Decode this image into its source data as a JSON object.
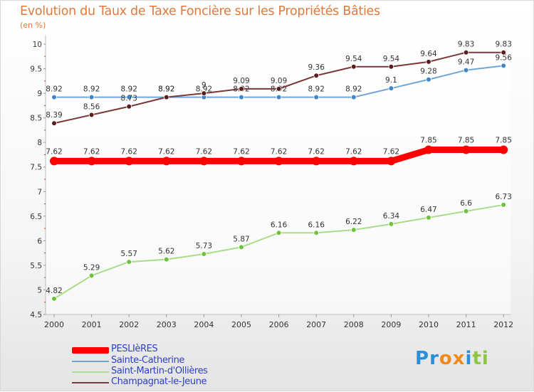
{
  "header": {
    "title": "Evolution du Taux de Taxe Foncière sur les Propriétés Bâties",
    "unit": "(en %)"
  },
  "chart_data": {
    "type": "line",
    "title": "Evolution du Taux de Taxe Foncière sur les Propriétés Bâties",
    "ylabel": "(en %)",
    "xlabel": "",
    "categories": [
      "2000",
      "2001",
      "2002",
      "2003",
      "2004",
      "2005",
      "2006",
      "2007",
      "2008",
      "2009",
      "2010",
      "2011",
      "2012"
    ],
    "ylim": [
      4.5,
      10
    ],
    "yticks": [
      "4.5",
      "5",
      "5.5",
      "6",
      "6.5",
      "7",
      "7.5",
      "8",
      "8.5",
      "9",
      "9.5",
      "10"
    ],
    "grid": false,
    "legend_position": "bottom-left",
    "series": [
      {
        "name": "PESLIèRES",
        "color": "#ff0000",
        "values": [
          7.62,
          7.62,
          7.62,
          7.62,
          7.62,
          7.62,
          7.62,
          7.62,
          7.62,
          7.62,
          7.85,
          7.85,
          7.85
        ],
        "labels": [
          "7.62",
          "7.62",
          "7.62",
          "7.62",
          "7.62",
          "7.62",
          "7.62",
          "7.62",
          "7.62",
          "7.62",
          "7.85",
          "7.85",
          "7.85"
        ]
      },
      {
        "name": "Sainte-Catherine",
        "color": "#6fa6d6",
        "marker_color": "#3f86c6",
        "values": [
          8.92,
          8.92,
          8.92,
          8.92,
          8.92,
          8.92,
          8.92,
          8.92,
          8.92,
          9.1,
          9.28,
          9.47,
          9.56
        ],
        "labels": [
          "8.92",
          "8.92",
          "8.92",
          "8.92",
          "8.92",
          "8.92",
          "8.92",
          "8.92",
          "8.92",
          "9.1",
          "9.28",
          "9.47",
          "9.56"
        ]
      },
      {
        "name": "Saint-Martin-d'Ollières",
        "color": "#a9dd8a",
        "marker_color": "#6cc23a",
        "values": [
          4.82,
          5.29,
          5.57,
          5.62,
          5.73,
          5.87,
          6.16,
          6.16,
          6.22,
          6.34,
          6.47,
          6.6,
          6.73
        ],
        "labels": [
          "4.82",
          "5.29",
          "5.57",
          "5.62",
          "5.73",
          "5.87",
          "6.16",
          "6.16",
          "6.22",
          "6.34",
          "6.47",
          "6.6",
          "6.73"
        ]
      },
      {
        "name": "Champagnat-le-Jeune",
        "color": "#7a3838",
        "marker_color": "#5a1c1c",
        "values": [
          8.39,
          8.56,
          8.73,
          8.92,
          9,
          9.09,
          9.09,
          9.36,
          9.54,
          9.54,
          9.64,
          9.83,
          9.83
        ],
        "labels": [
          "8.39",
          "8.56",
          "8.73",
          "8.92",
          "9",
          "9.09",
          "9.09",
          "9.36",
          "9.54",
          "9.54",
          "9.64",
          "9.83",
          "9.83"
        ]
      }
    ]
  },
  "brand": {
    "name": "Proxiti",
    "letters": [
      "P",
      "r",
      "o",
      "x",
      "i",
      "t",
      "i"
    ],
    "colors": [
      "#2a8fd8",
      "#2a8fd8",
      "#f08a1a",
      "#f08a1a",
      "#2a8fd8",
      "#8dc63f",
      "#8dc63f"
    ]
  }
}
